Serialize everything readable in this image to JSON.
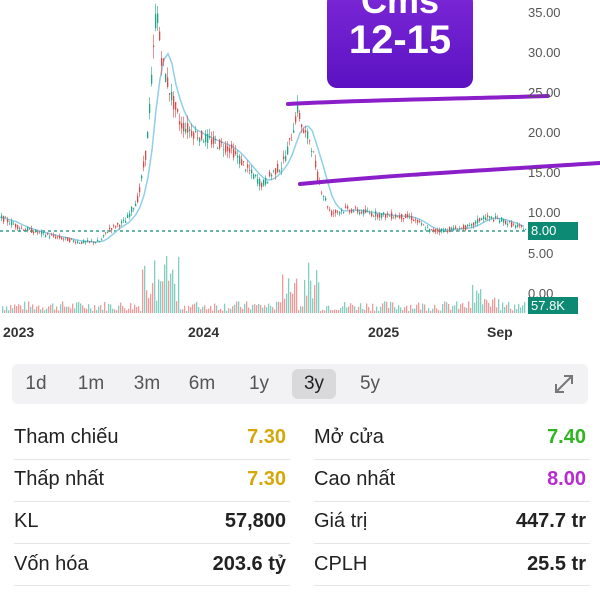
{
  "chart": {
    "y_ticks": [
      "35.00",
      "30.00",
      "25.00",
      "20.00",
      "15.00",
      "10.00",
      "5.00",
      "0.00"
    ],
    "x_ticks": [
      "2023",
      "2024",
      "2025",
      "Sep"
    ],
    "current_price": "8.00",
    "current_volume": "57.8K",
    "overlay": {
      "line1": "Cms",
      "line2": "12-15"
    },
    "colors": {
      "up": "#1fa58a",
      "down": "#e04848",
      "ma": "#8fd0e8",
      "annotation": "#8a1ec9",
      "price_tag": "#0d8a73",
      "reference_line": "#0d8a73"
    }
  },
  "periods": {
    "items": [
      "1d",
      "1m",
      "3m",
      "6m",
      "1y",
      "3y",
      "5y"
    ],
    "active": "3y"
  },
  "stats": {
    "tham_chieu": {
      "label": "Tham chiếu",
      "value": "7.30",
      "color": "#d6a70a"
    },
    "mo_cua": {
      "label": "Mở cửa",
      "value": "7.40",
      "color": "#2fb520"
    },
    "thap_nhat": {
      "label": "Thấp nhất",
      "value": "7.30",
      "color": "#d6a70a"
    },
    "cao_nhat": {
      "label": "Cao nhất",
      "value": "8.00",
      "color": "#b72bd1"
    },
    "kl": {
      "label": "KL",
      "value": "57,800"
    },
    "gia_tri": {
      "label": "Giá trị",
      "value": "447.7 tr"
    },
    "von_hoa": {
      "label": "Vốn hóa",
      "value": "203.6 tỷ"
    },
    "cplh": {
      "label": "CPLH",
      "value": "25.5 tr"
    }
  }
}
